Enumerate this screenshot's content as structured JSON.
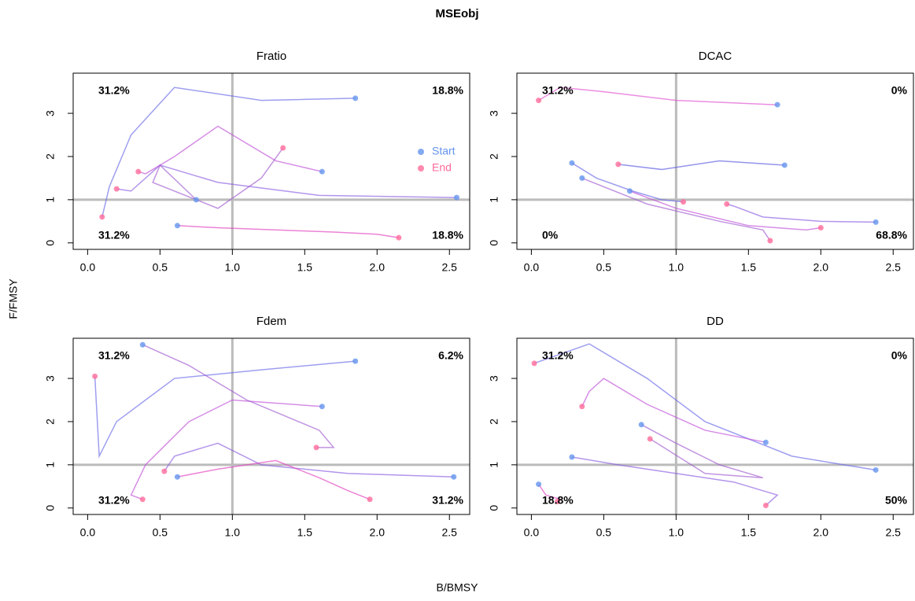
{
  "title": "MSEobj",
  "x_label": "B/BMSY",
  "y_label": "F/FMSY",
  "chart_data": [
    {
      "type": "line",
      "title": "Fratio",
      "xlim": [
        -0.1,
        2.64
      ],
      "ylim": [
        -0.15,
        3.93
      ],
      "xticks": [
        {
          "value": 0,
          "label": "0.0"
        },
        0.5,
        {
          "value": 1,
          "label": "1.0"
        },
        1.5,
        {
          "value": 2,
          "label": "2.0"
        },
        2.5
      ],
      "yticks": [
        0,
        1,
        2,
        3
      ],
      "reference_lines": {
        "x": 1,
        "y": 1
      },
      "start_color": "#6495ed",
      "end_color": "#ff6b9a",
      "legend": {
        "position": "right",
        "items": [
          {
            "name": "Start",
            "color": "#6495ed"
          },
          {
            "name": "End",
            "color": "#ff6b9a"
          }
        ]
      },
      "annotations": [
        {
          "text": "31.2%",
          "corner": "top-left"
        },
        {
          "text": "18.8%",
          "corner": "top-right"
        },
        {
          "text": "31.2%",
          "corner": "bottom-left"
        },
        {
          "text": "18.8%",
          "corner": "bottom-right"
        }
      ],
      "series": [
        {
          "color": "#6a6ae8",
          "x": [
            1.85,
            1.2,
            0.6,
            0.3,
            0.15,
            0.1
          ],
          "values": [
            3.35,
            3.3,
            3.6,
            2.5,
            1.3,
            0.6
          ]
        },
        {
          "color": "#8a5ce0",
          "x": [
            2.55,
            1.6,
            0.9,
            0.5,
            0.3,
            0.2
          ],
          "values": [
            1.05,
            1.1,
            1.4,
            1.8,
            1.2,
            1.25
          ]
        },
        {
          "color": "#c050d8",
          "x": [
            1.62,
            1.3,
            0.9,
            0.6,
            0.4,
            0.35
          ],
          "values": [
            1.65,
            1.9,
            2.7,
            2.0,
            1.6,
            1.65
          ]
        },
        {
          "color": "#e040c0",
          "x": [
            0.62,
            0.9,
            1.3,
            1.7,
            2.0,
            2.15
          ],
          "values": [
            0.4,
            0.35,
            0.3,
            0.25,
            0.2,
            0.12
          ]
        },
        {
          "color": "#a05ad0",
          "x": [
            0.75,
            0.5,
            0.45,
            0.9,
            1.2,
            1.35
          ],
          "values": [
            1.0,
            1.8,
            1.4,
            0.8,
            1.5,
            2.2
          ]
        }
      ]
    },
    {
      "type": "line",
      "title": "DCAC",
      "xlim": [
        -0.1,
        2.64
      ],
      "ylim": [
        -0.15,
        3.93
      ],
      "xticks": [
        {
          "value": 0,
          "label": "0.0"
        },
        0.5,
        {
          "value": 1,
          "label": "1.0"
        },
        1.5,
        {
          "value": 2,
          "label": "2.0"
        },
        2.5
      ],
      "yticks": [
        0,
        1,
        2,
        3
      ],
      "reference_lines": {
        "x": 1,
        "y": 1
      },
      "start_color": "#6495ed",
      "end_color": "#ff6b9a",
      "annotations": [
        {
          "text": "31.2%",
          "corner": "top-left"
        },
        {
          "text": "0%",
          "corner": "top-right"
        },
        {
          "text": "0%",
          "corner": "bottom-left"
        },
        {
          "text": "68.8%",
          "corner": "bottom-right"
        }
      ],
      "series": [
        {
          "color": "#e050d0",
          "x": [
            1.7,
            1.68,
            1.0,
            0.5,
            0.2,
            0.05
          ],
          "values": [
            3.2,
            3.2,
            3.3,
            3.5,
            3.6,
            3.3
          ]
        },
        {
          "color": "#6a6ae8",
          "x": [
            0.28,
            0.45,
            0.7,
            0.9,
            1.05
          ],
          "values": [
            1.85,
            1.5,
            1.2,
            1.0,
            0.95
          ]
        },
        {
          "color": "#8a5ce0",
          "x": [
            2.38,
            2.0,
            1.6,
            1.4,
            1.35
          ],
          "values": [
            0.48,
            0.5,
            0.6,
            0.85,
            0.9
          ]
        },
        {
          "color": "#c050d8",
          "x": [
            0.68,
            1.0,
            1.5,
            1.9,
            2.0
          ],
          "values": [
            1.2,
            0.8,
            0.4,
            0.3,
            0.35
          ]
        },
        {
          "color": "#a05ad0",
          "x": [
            0.35,
            0.8,
            1.3,
            1.6,
            1.65
          ],
          "values": [
            1.5,
            0.9,
            0.5,
            0.3,
            0.05
          ]
        },
        {
          "color": "#5a5ae0",
          "x": [
            1.75,
            1.3,
            0.9,
            0.6
          ],
          "values": [
            1.8,
            1.9,
            1.7,
            1.82
          ]
        }
      ]
    },
    {
      "type": "line",
      "title": "Fdem",
      "xlim": [
        -0.1,
        2.64
      ],
      "ylim": [
        -0.15,
        3.93
      ],
      "xticks": [
        {
          "value": 0,
          "label": "0.0"
        },
        0.5,
        {
          "value": 1,
          "label": "1.0"
        },
        1.5,
        {
          "value": 2,
          "label": "2.0"
        },
        2.5
      ],
      "yticks": [
        0,
        1,
        2,
        3
      ],
      "reference_lines": {
        "x": 1,
        "y": 1
      },
      "start_color": "#6495ed",
      "end_color": "#ff6b9a",
      "annotations": [
        {
          "text": "31.2%",
          "corner": "top-left"
        },
        {
          "text": "6.2%",
          "corner": "top-right"
        },
        {
          "text": "31.2%",
          "corner": "bottom-left"
        },
        {
          "text": "31.2%",
          "corner": "bottom-right"
        }
      ],
      "series": [
        {
          "color": "#6a6ae8",
          "x": [
            1.85,
            1.2,
            0.6,
            0.2,
            0.08,
            0.05
          ],
          "values": [
            3.4,
            3.2,
            3.0,
            2.0,
            1.2,
            3.05
          ]
        },
        {
          "color": "#8a5ce0",
          "x": [
            2.53,
            1.8,
            1.2,
            0.9,
            0.6,
            0.53
          ],
          "values": [
            0.72,
            0.8,
            1.0,
            1.5,
            1.2,
            0.85
          ]
        },
        {
          "color": "#c050d8",
          "x": [
            1.62,
            1.0,
            0.7,
            0.4,
            0.3,
            0.38
          ],
          "values": [
            2.35,
            2.5,
            2.0,
            1.0,
            0.3,
            0.2
          ]
        },
        {
          "color": "#e040c0",
          "x": [
            0.62,
            0.9,
            1.3,
            1.6,
            1.8,
            1.95
          ],
          "values": [
            0.72,
            0.9,
            1.1,
            0.7,
            0.4,
            0.2
          ]
        },
        {
          "color": "#a05ad0",
          "x": [
            0.38,
            0.7,
            1.1,
            1.6,
            1.7,
            1.58
          ],
          "values": [
            3.78,
            3.3,
            2.5,
            1.8,
            1.4,
            1.4
          ]
        }
      ]
    },
    {
      "type": "line",
      "title": "DD",
      "xlim": [
        -0.1,
        2.64
      ],
      "ylim": [
        -0.15,
        3.93
      ],
      "xticks": [
        {
          "value": 0,
          "label": "0.0"
        },
        0.5,
        {
          "value": 1,
          "label": "1.0"
        },
        1.5,
        {
          "value": 2,
          "label": "2.0"
        },
        2.5
      ],
      "yticks": [
        0,
        1,
        2,
        3
      ],
      "reference_lines": {
        "x": 1,
        "y": 1
      },
      "start_color": "#6495ed",
      "end_color": "#ff6b9a",
      "annotations": [
        {
          "text": "31.2%",
          "corner": "top-left"
        },
        {
          "text": "0%",
          "corner": "top-right"
        },
        {
          "text": "18.8%",
          "corner": "bottom-left"
        },
        {
          "text": "50%",
          "corner": "bottom-right"
        }
      ],
      "series": [
        {
          "color": "#6a6ae8",
          "x": [
            2.38,
            1.8,
            1.2,
            0.8,
            0.4,
            0.02
          ],
          "values": [
            0.88,
            1.2,
            2.0,
            3.0,
            3.8,
            3.35
          ]
        },
        {
          "color": "#c050d8",
          "x": [
            1.62,
            1.2,
            0.8,
            0.5,
            0.4,
            0.35
          ],
          "values": [
            1.52,
            1.8,
            2.4,
            3.0,
            2.7,
            2.35
          ]
        },
        {
          "color": "#8a5ce0",
          "x": [
            0.28,
            0.6,
            1.0,
            1.4,
            1.7,
            1.62
          ],
          "values": [
            1.18,
            1.0,
            0.8,
            0.6,
            0.3,
            0.06
          ]
        },
        {
          "color": "#e040c0",
          "x": [
            0.05,
            0.1,
            0.2,
            0.18
          ],
          "values": [
            0.55,
            0.3,
            0.2,
            0.15
          ]
        },
        {
          "color": "#a05ad0",
          "x": [
            0.76,
            1.0,
            1.3,
            1.6,
            1.2,
            0.82
          ],
          "values": [
            1.93,
            1.5,
            1.0,
            0.7,
            0.8,
            1.6
          ]
        }
      ]
    }
  ]
}
